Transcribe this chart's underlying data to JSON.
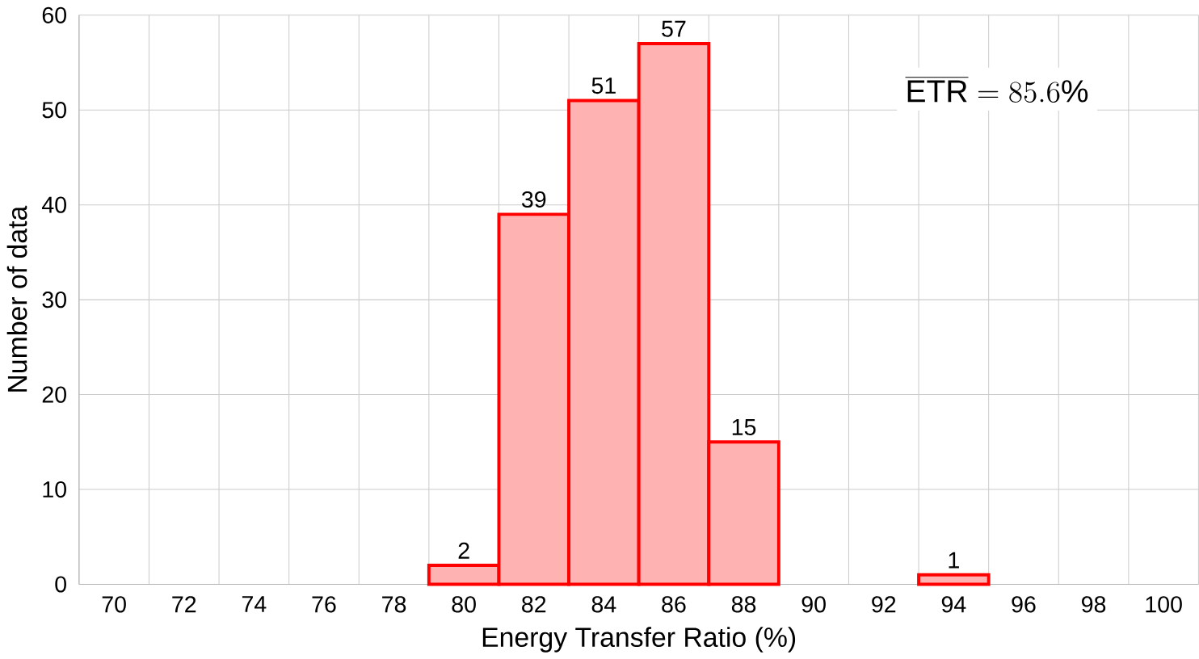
{
  "chart_data": {
    "type": "bar",
    "xlabel": "Energy Transfer Ratio (%)",
    "ylabel": "Number of data",
    "categories": [
      "70",
      "72",
      "74",
      "76",
      "78",
      "80",
      "82",
      "84",
      "86",
      "88",
      "90",
      "92",
      "94",
      "96",
      "98",
      "100"
    ],
    "values": [
      null,
      null,
      null,
      null,
      null,
      2,
      39,
      51,
      57,
      15,
      null,
      null,
      1,
      null,
      null,
      null
    ],
    "color": "#ff0000",
    "ylim": [
      0,
      60
    ],
    "yticks": [
      0,
      10,
      20,
      30,
      40,
      50,
      60
    ],
    "grid": true,
    "data_labels": true,
    "annotations": [
      "\\overline{\\mathrm{ETR}} = 85.6\\%"
    ]
  }
}
